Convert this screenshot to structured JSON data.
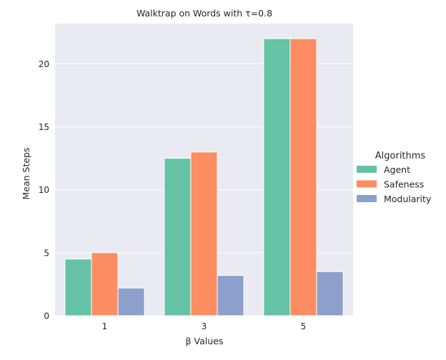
{
  "chart_data": {
    "type": "bar",
    "title": "Walktrap on Words with τ=0.8",
    "xlabel": "β Values",
    "ylabel": "Mean Steps",
    "categories": [
      "1",
      "3",
      "5"
    ],
    "series": [
      {
        "name": "Agent",
        "values": [
          4.5,
          12.5,
          22.0
        ],
        "color": "#66c2a5"
      },
      {
        "name": "Safeness",
        "values": [
          5.0,
          13.0,
          22.0
        ],
        "color": "#fc8d62"
      },
      {
        "name": "Modularity",
        "values": [
          2.2,
          3.2,
          3.5
        ],
        "color": "#8da0cb"
      }
    ],
    "ylim": [
      0,
      23.2
    ],
    "yticks": [
      0,
      5,
      10,
      15,
      20
    ],
    "grid": true,
    "background": "#eaeaf2",
    "legend": {
      "title": "Algorithms",
      "placement": "right"
    }
  }
}
